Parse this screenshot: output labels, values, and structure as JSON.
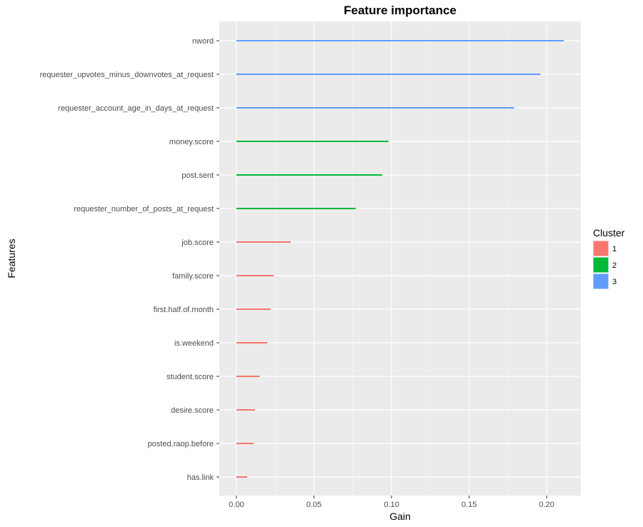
{
  "chart_data": {
    "type": "bar",
    "title": "Feature importance",
    "xlabel": "Gain",
    "ylabel": "Features",
    "xlim": [
      -0.011,
      0.222
    ],
    "xticks": [
      0.0,
      0.05,
      0.1,
      0.15,
      0.2
    ],
    "xtick_labels": [
      "0.00",
      "0.05",
      "0.10",
      "0.15",
      "0.20"
    ],
    "grid": true,
    "legend": {
      "title": "Cluster",
      "position": "right",
      "entries": [
        {
          "label": "1",
          "color": "#F8766D"
        },
        {
          "label": "2",
          "color": "#00BA38"
        },
        {
          "label": "3",
          "color": "#619CFF"
        }
      ]
    },
    "categories": [
      "nword",
      "requester_upvotes_minus_downvotes_at_request",
      "requester_account_age_in_days_at_request",
      "money.score",
      "post.sent",
      "requester_number_of_posts_at_request",
      "job.score",
      "family.score",
      "first.half.of.month",
      "is.weekend",
      "student.score",
      "desire.score",
      "posted.raop.before",
      "has.link"
    ],
    "values": [
      0.211,
      0.196,
      0.179,
      0.098,
      0.094,
      0.077,
      0.035,
      0.024,
      0.022,
      0.02,
      0.015,
      0.012,
      0.011,
      0.007
    ],
    "clusters": [
      "3",
      "3",
      "3",
      "2",
      "2",
      "2",
      "1",
      "1",
      "1",
      "1",
      "1",
      "1",
      "1",
      "1"
    ]
  }
}
